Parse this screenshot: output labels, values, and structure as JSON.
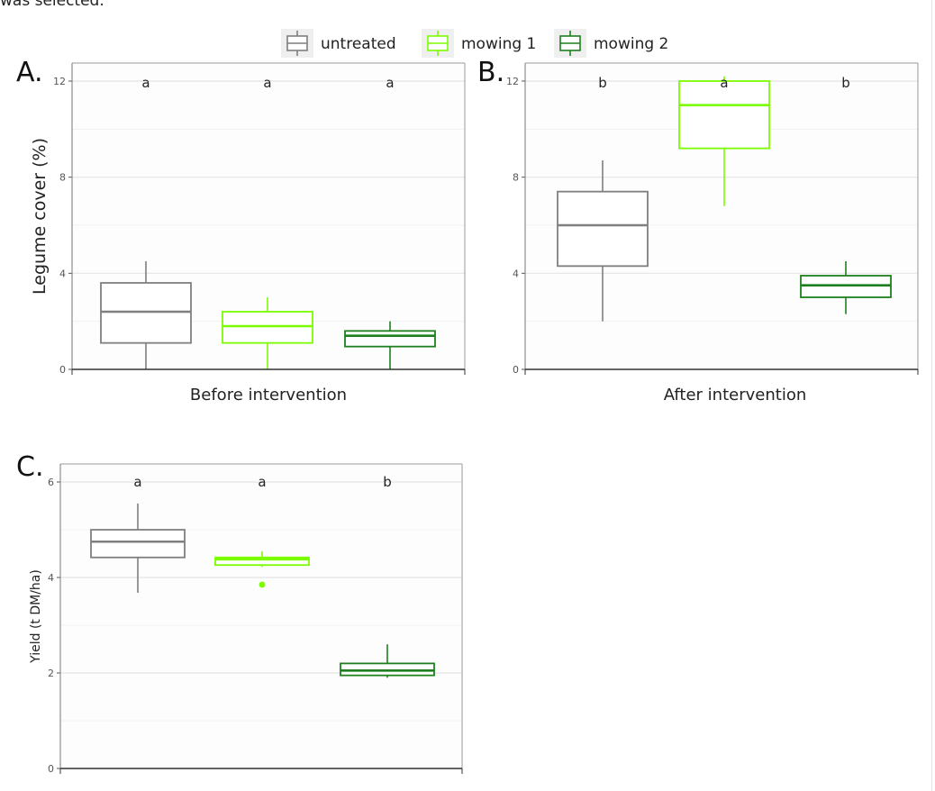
{
  "top_text": "was selected.",
  "legend": {
    "items": [
      {
        "label": "untreated",
        "color": "#7f7f7f"
      },
      {
        "label": "mowing 1",
        "color": "#7CFC00"
      },
      {
        "label": "mowing 2",
        "color": "#1E7F1E"
      }
    ]
  },
  "chart_data": [
    {
      "type": "box",
      "panel": "A.",
      "title": "",
      "xlabel": "Before intervention",
      "ylabel": "Legume cover (%)",
      "ylim": [
        0,
        12
      ],
      "yticks": [
        0,
        4,
        8,
        12
      ],
      "grid": true,
      "categories": [
        "untreated",
        "mowing 1",
        "mowing 2"
      ],
      "series": [
        {
          "name": "untreated",
          "min": 0,
          "q1": 1.1,
          "median": 2.4,
          "q3": 3.6,
          "max": 4.5,
          "outliers": [],
          "letter": "a"
        },
        {
          "name": "mowing 1",
          "min": 0,
          "q1": 1.1,
          "median": 1.8,
          "q3": 2.4,
          "max": 3.0,
          "outliers": [],
          "letter": "a"
        },
        {
          "name": "mowing 2",
          "min": 0,
          "q1": 0.95,
          "median": 1.4,
          "q3": 1.6,
          "max": 2.0,
          "outliers": [],
          "letter": "a"
        }
      ]
    },
    {
      "type": "box",
      "panel": "B.",
      "title": "",
      "xlabel": "After intervention",
      "ylabel": "",
      "ylim": [
        0,
        12
      ],
      "yticks": [
        0,
        4,
        8,
        12
      ],
      "grid": true,
      "categories": [
        "untreated",
        "mowing 1",
        "mowing 2"
      ],
      "series": [
        {
          "name": "untreated",
          "min": 2.0,
          "q1": 4.3,
          "median": 6.0,
          "q3": 7.4,
          "max": 8.7,
          "outliers": [],
          "letter": "b"
        },
        {
          "name": "mowing 1",
          "min": 6.8,
          "q1": 9.2,
          "median": 11.0,
          "q3": 12.0,
          "max": 12.2,
          "outliers": [],
          "letter": "a"
        },
        {
          "name": "mowing 2",
          "min": 2.3,
          "q1": 3.0,
          "median": 3.5,
          "q3": 3.9,
          "max": 4.5,
          "outliers": [],
          "letter": "b"
        }
      ]
    },
    {
      "type": "box",
      "panel": "C.",
      "title": "",
      "xlabel": "",
      "ylabel": "Yield (t DM/ha)",
      "ylim": [
        0,
        6
      ],
      "yticks": [
        0,
        2,
        4,
        6
      ],
      "grid": true,
      "categories": [
        "untreated",
        "mowing 1",
        "mowing 2"
      ],
      "series": [
        {
          "name": "untreated",
          "min": 3.68,
          "q1": 4.42,
          "median": 4.75,
          "q3": 5.0,
          "max": 5.55,
          "outliers": [],
          "letter": "a"
        },
        {
          "name": "mowing 1",
          "min": 4.22,
          "q1": 4.26,
          "median": 4.38,
          "q3": 4.42,
          "max": 4.55,
          "outliers": [
            3.85
          ],
          "letter": "a"
        },
        {
          "name": "mowing 2",
          "min": 1.9,
          "q1": 1.95,
          "median": 2.05,
          "q3": 2.2,
          "max": 2.6,
          "outliers": [],
          "letter": "b"
        }
      ]
    }
  ]
}
